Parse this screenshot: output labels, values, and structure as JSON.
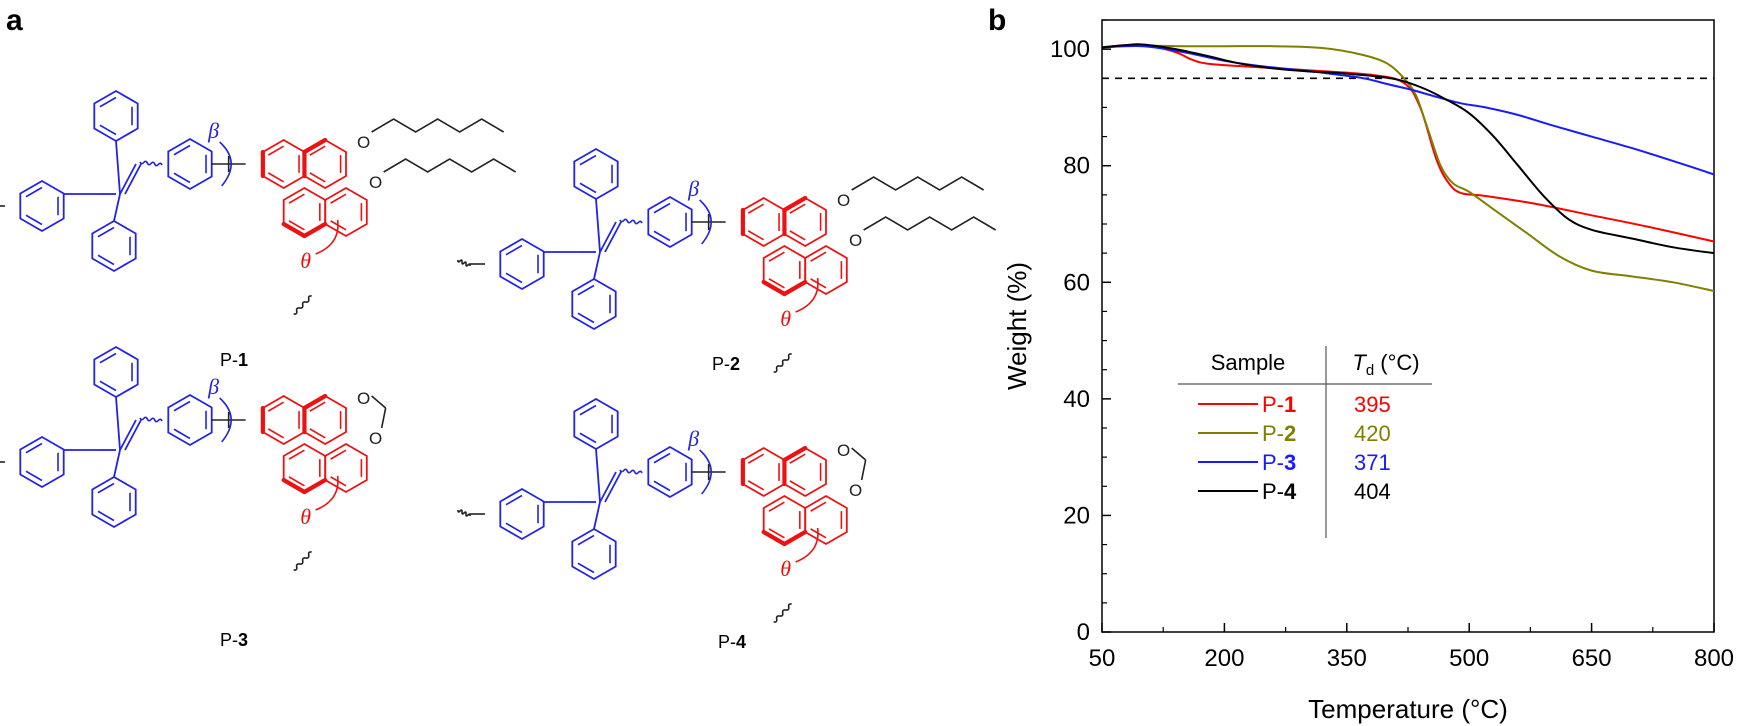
{
  "panels": {
    "a": "a",
    "b": "b"
  },
  "structures": [
    {
      "id": "P1",
      "prefix": "P-",
      "num": "1",
      "o_label": "O",
      "beta": "β",
      "theta": "θ"
    },
    {
      "id": "P2",
      "prefix": "P-",
      "num": "2",
      "o_label": "O",
      "beta": "β",
      "theta": "θ"
    },
    {
      "id": "P3",
      "prefix": "P-",
      "num": "3",
      "o_label": "O",
      "beta": "β",
      "theta": "θ"
    },
    {
      "id": "P4",
      "prefix": "P-",
      "num": "4",
      "o_label": "O",
      "beta": "β",
      "theta": "θ"
    }
  ],
  "colors": {
    "tpe": "#2323e6",
    "binaphthyl": "#ee1111",
    "bond": "#222222"
  },
  "chart_data": {
    "type": "line",
    "xlabel": "Temperature (°C)",
    "ylabel": "Weight (%)",
    "xlim": [
      50,
      800
    ],
    "ylim": [
      0,
      105
    ],
    "xticks": [
      50,
      200,
      350,
      500,
      650,
      800
    ],
    "yticks": [
      0,
      20,
      40,
      60,
      80,
      100
    ],
    "reference_line": {
      "y": 95,
      "style": "dashed"
    },
    "legend_placement": "center-left",
    "legend_header": {
      "sample": "Sample",
      "td_symbol": "T",
      "td_sub": "d",
      "td_unit": " (°C)"
    },
    "series": [
      {
        "name": "P-1",
        "prefix": "P-",
        "num": "1",
        "color": "#ff0000",
        "td": "395",
        "points": [
          [
            50,
            100.3
          ],
          [
            80,
            100.7
          ],
          [
            110,
            100.5
          ],
          [
            140,
            99.5
          ],
          [
            160,
            98.2
          ],
          [
            180,
            97.5
          ],
          [
            230,
            97.0
          ],
          [
            300,
            96.4
          ],
          [
            380,
            95.6
          ],
          [
            420,
            94.2
          ],
          [
            440,
            90.0
          ],
          [
            460,
            81.0
          ],
          [
            475,
            77.0
          ],
          [
            490,
            75.3
          ],
          [
            520,
            74.8
          ],
          [
            580,
            73.5
          ],
          [
            650,
            71.5
          ],
          [
            720,
            69.5
          ],
          [
            800,
            67.0
          ]
        ]
      },
      {
        "name": "P-2",
        "prefix": "P-",
        "num": "2",
        "color": "#808000",
        "td": "420",
        "points": [
          [
            50,
            100.3
          ],
          [
            90,
            100.6
          ],
          [
            150,
            100.5
          ],
          [
            200,
            100.5
          ],
          [
            260,
            100.5
          ],
          [
            320,
            100.2
          ],
          [
            370,
            99.0
          ],
          [
            400,
            97.5
          ],
          [
            420,
            95.0
          ],
          [
            435,
            92.0
          ],
          [
            450,
            86.0
          ],
          [
            465,
            80.0
          ],
          [
            480,
            77.0
          ],
          [
            500,
            75.5
          ],
          [
            530,
            72.5
          ],
          [
            570,
            68.5
          ],
          [
            610,
            64.5
          ],
          [
            650,
            62.0
          ],
          [
            700,
            61.0
          ],
          [
            750,
            60.0
          ],
          [
            800,
            58.5
          ]
        ]
      },
      {
        "name": "P-3",
        "prefix": "P-",
        "num": "3",
        "color": "#1a1aff",
        "td": "371",
        "points": [
          [
            50,
            100.3
          ],
          [
            100,
            100.5
          ],
          [
            150,
            99.5
          ],
          [
            200,
            98.0
          ],
          [
            250,
            97.0
          ],
          [
            300,
            96.3
          ],
          [
            340,
            95.6
          ],
          [
            371,
            95.0
          ],
          [
            400,
            94.0
          ],
          [
            430,
            93.0
          ],
          [
            460,
            91.8
          ],
          [
            490,
            90.7
          ],
          [
            520,
            90.0
          ],
          [
            560,
            88.7
          ],
          [
            600,
            87.0
          ],
          [
            650,
            85.0
          ],
          [
            700,
            83.0
          ],
          [
            750,
            80.8
          ],
          [
            800,
            78.5
          ]
        ]
      },
      {
        "name": "P-4",
        "prefix": "P-",
        "num": "4",
        "color": "#000000",
        "td": "404",
        "points": [
          [
            50,
            100.3
          ],
          [
            80,
            100.7
          ],
          [
            100,
            100.8
          ],
          [
            140,
            100.0
          ],
          [
            180,
            98.8
          ],
          [
            220,
            97.5
          ],
          [
            260,
            96.7
          ],
          [
            300,
            96.2
          ],
          [
            350,
            95.8
          ],
          [
            404,
            95.0
          ],
          [
            440,
            93.5
          ],
          [
            470,
            91.5
          ],
          [
            500,
            89.0
          ],
          [
            530,
            85.0
          ],
          [
            560,
            80.0
          ],
          [
            590,
            75.0
          ],
          [
            620,
            71.0
          ],
          [
            650,
            69.0
          ],
          [
            700,
            67.5
          ],
          [
            750,
            66.0
          ],
          [
            800,
            65.0
          ]
        ]
      }
    ]
  }
}
